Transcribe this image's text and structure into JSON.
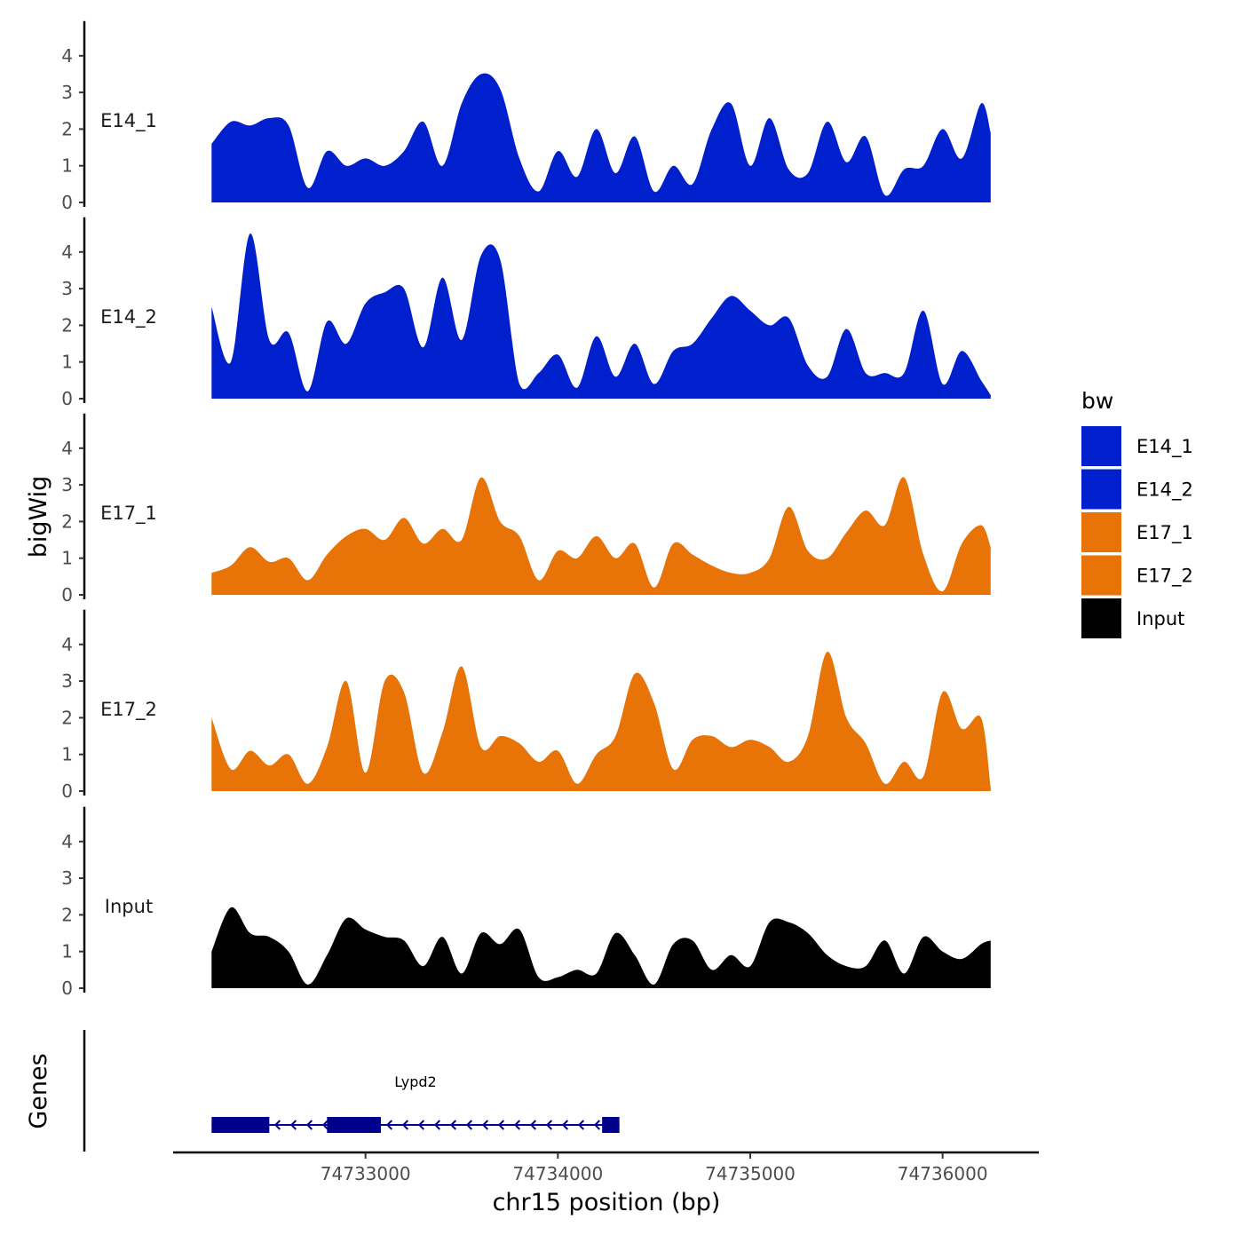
{
  "chart_data": {
    "type": "area",
    "ylabel": "bigWig",
    "xlabel": "chr15 position (bp)",
    "x_range": [
      74732000,
      74736500
    ],
    "x_ticks": [
      74733000,
      74734000,
      74735000,
      74736000
    ],
    "ylim": [
      0,
      4.8
    ],
    "y_ticks": [
      0,
      1,
      2,
      3,
      4
    ],
    "x": [
      74732200,
      74732300,
      74732400,
      74732500,
      74732600,
      74732700,
      74732800,
      74732900,
      74733000,
      74733100,
      74733200,
      74733300,
      74733400,
      74733500,
      74733600,
      74733700,
      74733800,
      74733900,
      74734000,
      74734100,
      74734200,
      74734300,
      74734400,
      74734500,
      74734600,
      74734700,
      74734800,
      74734900,
      74735000,
      74735100,
      74735200,
      74735300,
      74735400,
      74735500,
      74735600,
      74735700,
      74735800,
      74735900,
      74736000,
      74736100,
      74736200,
      74736250
    ],
    "series": [
      {
        "name": "E14_1",
        "color": "#0020CD",
        "values": [
          1.6,
          2.2,
          2.1,
          2.3,
          2.1,
          0.4,
          1.4,
          1.0,
          1.2,
          1.0,
          1.4,
          2.2,
          1.0,
          2.7,
          3.5,
          3.1,
          1.2,
          0.3,
          1.4,
          0.7,
          2.0,
          0.8,
          1.8,
          0.3,
          1.0,
          0.5,
          2.0,
          2.7,
          1.0,
          2.3,
          0.9,
          0.8,
          2.2,
          1.1,
          1.8,
          0.2,
          0.9,
          1.0,
          2.0,
          1.2,
          2.7,
          1.9
        ]
      },
      {
        "name": "E14_2",
        "color": "#0020CD",
        "values": [
          2.5,
          1.0,
          4.5,
          1.6,
          1.8,
          0.2,
          2.1,
          1.5,
          2.6,
          2.9,
          3.0,
          1.4,
          3.3,
          1.6,
          3.9,
          3.8,
          0.4,
          0.7,
          1.2,
          0.3,
          1.7,
          0.6,
          1.5,
          0.4,
          1.3,
          1.5,
          2.2,
          2.8,
          2.4,
          2.0,
          2.2,
          0.9,
          0.6,
          1.9,
          0.7,
          0.7,
          0.7,
          2.4,
          0.4,
          1.3,
          0.5,
          0.1
        ]
      },
      {
        "name": "E17_1",
        "color": "#E87306",
        "values": [
          0.6,
          0.8,
          1.3,
          0.9,
          1.0,
          0.4,
          1.1,
          1.6,
          1.8,
          1.5,
          2.1,
          1.4,
          1.8,
          1.5,
          3.2,
          2.0,
          1.6,
          0.4,
          1.2,
          1.0,
          1.6,
          1.0,
          1.4,
          0.2,
          1.4,
          1.1,
          0.8,
          0.6,
          0.6,
          1.0,
          2.4,
          1.2,
          1.0,
          1.7,
          2.3,
          1.9,
          3.2,
          1.1,
          0.1,
          1.4,
          1.9,
          1.3
        ]
      },
      {
        "name": "E17_2",
        "color": "#E87306",
        "values": [
          2.0,
          0.6,
          1.1,
          0.7,
          1.0,
          0.2,
          1.2,
          3.0,
          0.5,
          3.0,
          2.7,
          0.5,
          1.6,
          3.4,
          1.2,
          1.5,
          1.3,
          0.8,
          1.1,
          0.2,
          1.0,
          1.5,
          3.2,
          2.4,
          0.6,
          1.4,
          1.5,
          1.2,
          1.4,
          1.2,
          0.8,
          1.5,
          3.8,
          2.0,
          1.3,
          0.2,
          0.8,
          0.4,
          2.7,
          1.7,
          2.0,
          0.1
        ]
      },
      {
        "name": "Input",
        "color": "#000000",
        "values": [
          1.0,
          2.2,
          1.5,
          1.4,
          1.0,
          0.1,
          0.9,
          1.9,
          1.6,
          1.4,
          1.3,
          0.6,
          1.4,
          0.4,
          1.5,
          1.2,
          1.6,
          0.3,
          0.3,
          0.5,
          0.4,
          1.5,
          0.9,
          0.1,
          1.2,
          1.3,
          0.5,
          0.9,
          0.6,
          1.8,
          1.8,
          1.5,
          0.9,
          0.6,
          0.6,
          1.3,
          0.4,
          1.4,
          1.0,
          0.8,
          1.2,
          1.3
        ]
      }
    ],
    "legend": {
      "title": "bw",
      "entries": [
        {
          "label": "E14_1",
          "color": "#0020CD"
        },
        {
          "label": "E14_2",
          "color": "#0020CD"
        },
        {
          "label": "E17_1",
          "color": "#E87306"
        },
        {
          "label": "E17_2",
          "color": "#E87306"
        },
        {
          "label": "Input",
          "color": "#000000"
        }
      ]
    },
    "gene_track": {
      "title": "Genes",
      "genes": [
        {
          "name": "Lypd2",
          "strand": "-",
          "color": "#00008B",
          "start": 74732200,
          "end": 74734320,
          "exons": [
            [
              74732200,
              74732500
            ],
            [
              74732800,
              74733080
            ],
            [
              74734230,
              74734320
            ]
          ]
        }
      ]
    }
  }
}
